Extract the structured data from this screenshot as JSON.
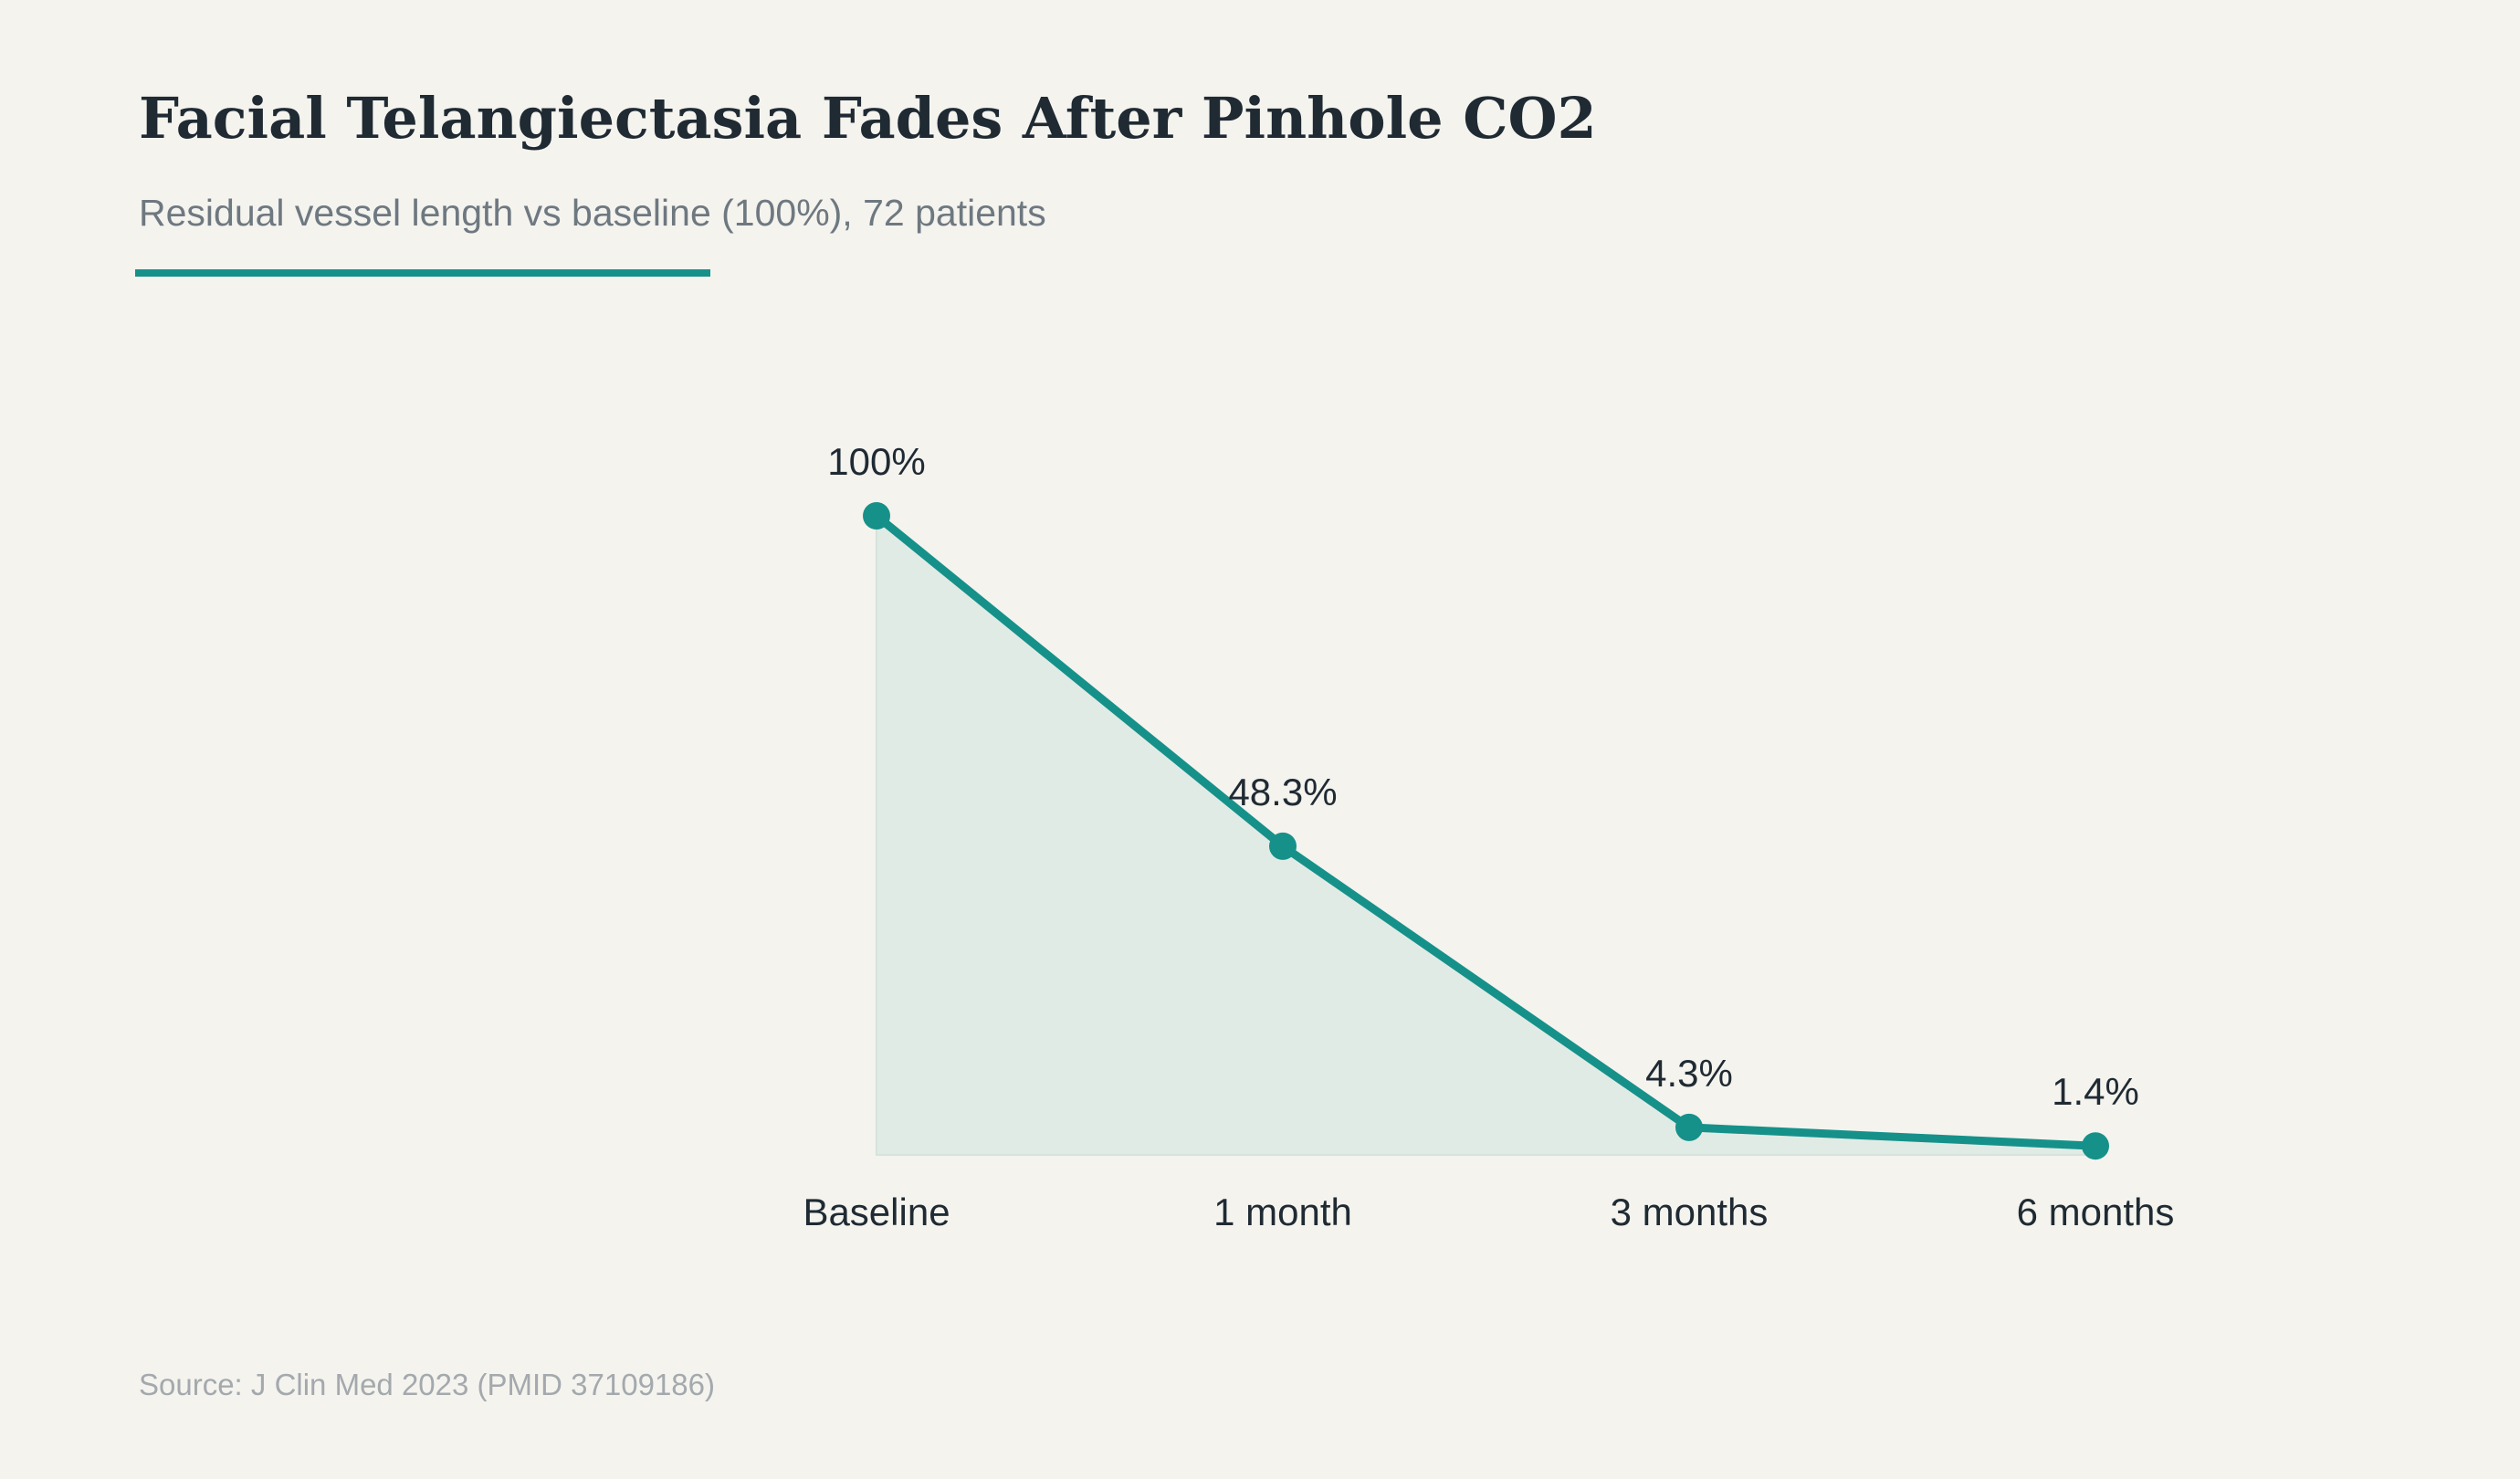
{
  "header": {
    "title": "Facial Telangiectasia Fades After Pinhole CO2",
    "subtitle": "Residual vessel length vs baseline (100%), 72 patients"
  },
  "footer": {
    "source": "Source: J Clin Med 2023 (PMID 37109186)"
  },
  "colors": {
    "background": "#f4f3ee",
    "accent": "#15918a",
    "area_fill": "#e1ebe6",
    "text_dark": "#1f2a33",
    "text_muted": "#6e7880"
  },
  "chart_data": {
    "type": "area",
    "categories": [
      "Baseline",
      "1 month",
      "3 months",
      "6 months"
    ],
    "series": [
      {
        "values": [
          100,
          48.3,
          4.3,
          1.4
        ],
        "labels": [
          "100%",
          "48.3%",
          "4.3%",
          "1.4%"
        ]
      }
    ],
    "ylim": [
      0,
      100
    ],
    "grid": false,
    "legend": "none"
  }
}
